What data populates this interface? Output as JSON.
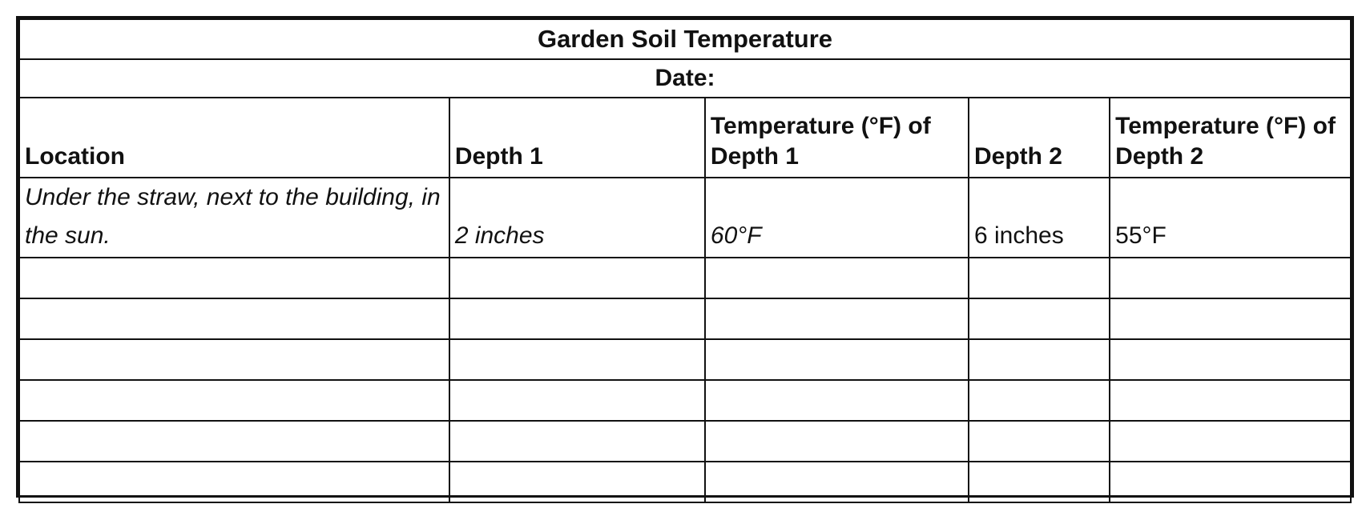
{
  "table": {
    "title": "Garden Soil Temperature",
    "date_label": "Date:",
    "headers": [
      "Location",
      "Depth 1",
      "Temperature (°F) of Depth 1",
      "Depth 2",
      "Temperature (°F) of Depth 2"
    ],
    "sample_row": [
      "Under the straw, next to the building, in the sun.",
      "2 inches",
      "60°F",
      "6 inches",
      "55°F"
    ],
    "empty_rows": 6
  }
}
